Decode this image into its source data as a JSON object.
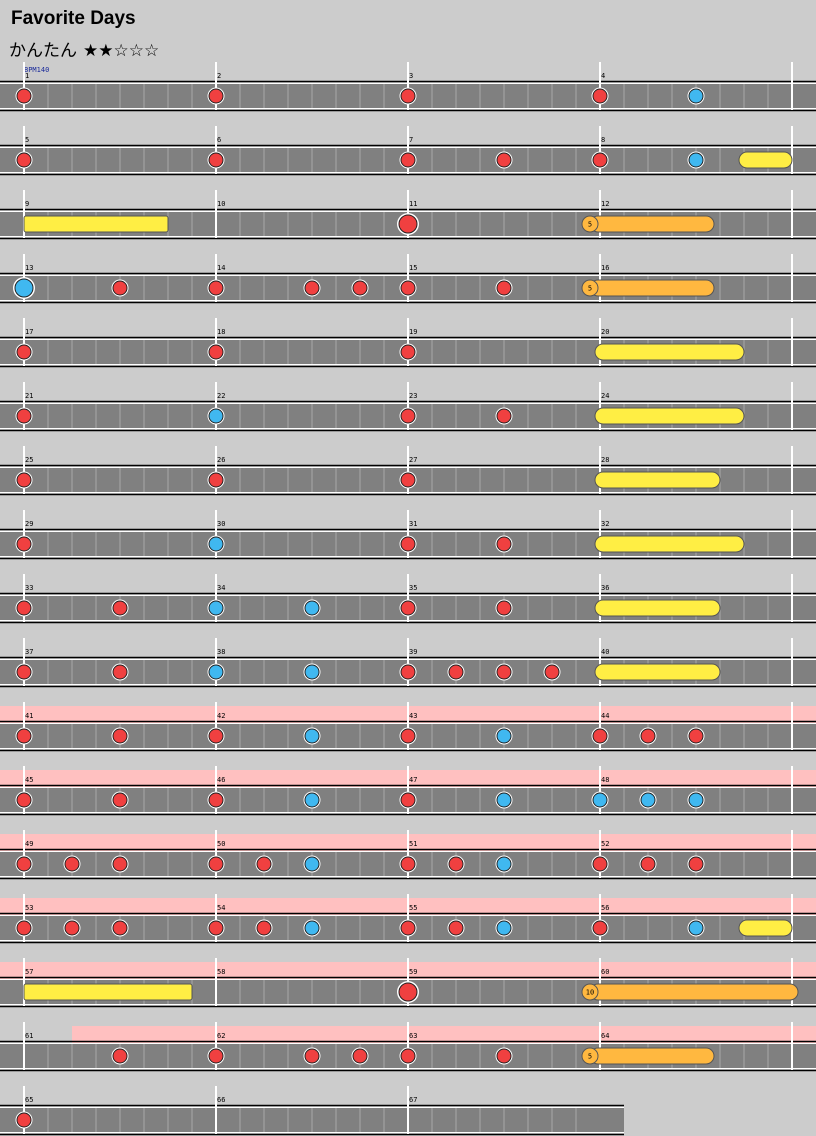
{
  "song": {
    "title": "Favorite Days",
    "difficulty_label": "かんたん",
    "stars": "★★☆☆☆",
    "stars_filled": 2,
    "stars_total": 5,
    "bpm_label": "BPM140"
  },
  "colors": {
    "background": "#cccccc",
    "lane": "#808080",
    "gogo_highlight": "#ffc0c0",
    "don": "#f04040",
    "ka": "#40b8f0",
    "drumroll": "#ffee44",
    "balloon": "#ffb840"
  },
  "chart_data": {
    "type": "rhythm-game-note-chart",
    "measures_per_row": 4,
    "beats_per_measure": 4,
    "total_measures": 67,
    "measure_numbers": [
      1,
      2,
      3,
      4,
      5,
      6,
      7,
      8,
      9,
      10,
      11,
      12,
      13,
      14,
      15,
      16,
      17,
      18,
      19,
      20,
      21,
      22,
      23,
      24,
      25,
      26,
      27,
      28,
      29,
      30,
      31,
      32,
      33,
      34,
      35,
      36,
      37,
      38,
      39,
      40,
      41,
      42,
      43,
      44,
      45,
      46,
      47,
      48,
      49,
      50,
      51,
      52,
      53,
      54,
      55,
      56,
      57,
      58,
      59,
      60,
      61,
      62,
      63,
      64,
      65,
      66,
      67
    ],
    "gogo_sections": [
      {
        "start": 41,
        "end": 61
      },
      {
        "start": 61.25,
        "end": 65
      }
    ],
    "notes": [
      {
        "m": 1,
        "b": 0,
        "t": "don"
      },
      {
        "m": 2,
        "b": 0,
        "t": "don"
      },
      {
        "m": 3,
        "b": 0,
        "t": "don"
      },
      {
        "m": 4,
        "b": 0,
        "t": "don"
      },
      {
        "m": 4,
        "b": 2,
        "t": "ka"
      },
      {
        "m": 5,
        "b": 0,
        "t": "don"
      },
      {
        "m": 6,
        "b": 0,
        "t": "don"
      },
      {
        "m": 7,
        "b": 0,
        "t": "don"
      },
      {
        "m": 7,
        "b": 2,
        "t": "don"
      },
      {
        "m": 8,
        "b": 0,
        "t": "don"
      },
      {
        "m": 8,
        "b": 2,
        "t": "ka"
      },
      {
        "m": 11,
        "b": 0,
        "t": "big-don"
      },
      {
        "m": 13,
        "b": 0,
        "t": "big-ka"
      },
      {
        "m": 13,
        "b": 2,
        "t": "don"
      },
      {
        "m": 14,
        "b": 0,
        "t": "don"
      },
      {
        "m": 14,
        "b": 2,
        "t": "don"
      },
      {
        "m": 14,
        "b": 3,
        "t": "don"
      },
      {
        "m": 15,
        "b": 0,
        "t": "don"
      },
      {
        "m": 15,
        "b": 2,
        "t": "don"
      },
      {
        "m": 17,
        "b": 0,
        "t": "don"
      },
      {
        "m": 18,
        "b": 0,
        "t": "don"
      },
      {
        "m": 19,
        "b": 0,
        "t": "don"
      },
      {
        "m": 21,
        "b": 0,
        "t": "don"
      },
      {
        "m": 22,
        "b": 0,
        "t": "ka"
      },
      {
        "m": 23,
        "b": 0,
        "t": "don"
      },
      {
        "m": 23,
        "b": 2,
        "t": "don"
      },
      {
        "m": 25,
        "b": 0,
        "t": "don"
      },
      {
        "m": 26,
        "b": 0,
        "t": "don"
      },
      {
        "m": 27,
        "b": 0,
        "t": "don"
      },
      {
        "m": 29,
        "b": 0,
        "t": "don"
      },
      {
        "m": 30,
        "b": 0,
        "t": "ka"
      },
      {
        "m": 31,
        "b": 0,
        "t": "don"
      },
      {
        "m": 31,
        "b": 2,
        "t": "don"
      },
      {
        "m": 33,
        "b": 0,
        "t": "don"
      },
      {
        "m": 33,
        "b": 2,
        "t": "don"
      },
      {
        "m": 34,
        "b": 0,
        "t": "ka"
      },
      {
        "m": 34,
        "b": 2,
        "t": "ka"
      },
      {
        "m": 35,
        "b": 0,
        "t": "don"
      },
      {
        "m": 35,
        "b": 2,
        "t": "don"
      },
      {
        "m": 37,
        "b": 0,
        "t": "don"
      },
      {
        "m": 37,
        "b": 2,
        "t": "don"
      },
      {
        "m": 38,
        "b": 0,
        "t": "ka"
      },
      {
        "m": 38,
        "b": 2,
        "t": "ka"
      },
      {
        "m": 39,
        "b": 0,
        "t": "don"
      },
      {
        "m": 39,
        "b": 1,
        "t": "don"
      },
      {
        "m": 39,
        "b": 2,
        "t": "don"
      },
      {
        "m": 39,
        "b": 3,
        "t": "don"
      },
      {
        "m": 41,
        "b": 0,
        "t": "don"
      },
      {
        "m": 41,
        "b": 2,
        "t": "don"
      },
      {
        "m": 42,
        "b": 0,
        "t": "don"
      },
      {
        "m": 42,
        "b": 2,
        "t": "ka"
      },
      {
        "m": 43,
        "b": 0,
        "t": "don"
      },
      {
        "m": 43,
        "b": 2,
        "t": "ka"
      },
      {
        "m": 44,
        "b": 0,
        "t": "don"
      },
      {
        "m": 44,
        "b": 1,
        "t": "don"
      },
      {
        "m": 44,
        "b": 2,
        "t": "don"
      },
      {
        "m": 45,
        "b": 0,
        "t": "don"
      },
      {
        "m": 45,
        "b": 2,
        "t": "don"
      },
      {
        "m": 46,
        "b": 0,
        "t": "don"
      },
      {
        "m": 46,
        "b": 2,
        "t": "ka"
      },
      {
        "m": 47,
        "b": 0,
        "t": "don"
      },
      {
        "m": 47,
        "b": 2,
        "t": "ka"
      },
      {
        "m": 48,
        "b": 0,
        "t": "ka"
      },
      {
        "m": 48,
        "b": 1,
        "t": "ka"
      },
      {
        "m": 48,
        "b": 2,
        "t": "ka"
      },
      {
        "m": 49,
        "b": 0,
        "t": "don"
      },
      {
        "m": 49,
        "b": 1,
        "t": "don"
      },
      {
        "m": 49,
        "b": 2,
        "t": "don"
      },
      {
        "m": 50,
        "b": 0,
        "t": "don"
      },
      {
        "m": 50,
        "b": 1,
        "t": "don"
      },
      {
        "m": 50,
        "b": 2,
        "t": "ka"
      },
      {
        "m": 51,
        "b": 0,
        "t": "don"
      },
      {
        "m": 51,
        "b": 1,
        "t": "don"
      },
      {
        "m": 51,
        "b": 2,
        "t": "ka"
      },
      {
        "m": 52,
        "b": 0,
        "t": "don"
      },
      {
        "m": 52,
        "b": 1,
        "t": "don"
      },
      {
        "m": 52,
        "b": 2,
        "t": "don"
      },
      {
        "m": 53,
        "b": 0,
        "t": "don"
      },
      {
        "m": 53,
        "b": 1,
        "t": "don"
      },
      {
        "m": 53,
        "b": 2,
        "t": "don"
      },
      {
        "m": 54,
        "b": 0,
        "t": "don"
      },
      {
        "m": 54,
        "b": 1,
        "t": "don"
      },
      {
        "m": 54,
        "b": 2,
        "t": "ka"
      },
      {
        "m": 55,
        "b": 0,
        "t": "don"
      },
      {
        "m": 55,
        "b": 1,
        "t": "don"
      },
      {
        "m": 55,
        "b": 2,
        "t": "ka"
      },
      {
        "m": 56,
        "b": 0,
        "t": "don"
      },
      {
        "m": 56,
        "b": 2,
        "t": "ka"
      },
      {
        "m": 59,
        "b": 0,
        "t": "big-don"
      },
      {
        "m": 62,
        "b": 0,
        "t": "don"
      },
      {
        "m": 61,
        "b": 2,
        "t": "don"
      },
      {
        "m": 62,
        "b": 2,
        "t": "don"
      },
      {
        "m": 62,
        "b": 3,
        "t": "don"
      },
      {
        "m": 63,
        "b": 0,
        "t": "don"
      },
      {
        "m": 63,
        "b": 2,
        "t": "don"
      },
      {
        "m": 65,
        "b": 0,
        "t": "don"
      }
    ],
    "drumrolls": [
      {
        "start": 8.75,
        "end": 9.75
      },
      {
        "start": 20,
        "end": 20.75
      },
      {
        "start": 24,
        "end": 24.75
      },
      {
        "start": 28,
        "end": 28.625
      },
      {
        "start": 32,
        "end": 32.75
      },
      {
        "start": 36,
        "end": 36.625
      },
      {
        "start": 40,
        "end": 40.625
      },
      {
        "start": 56.75,
        "end": 57.875
      }
    ],
    "balloons": [
      {
        "start": 12,
        "end": 12.5625,
        "hits": "5"
      },
      {
        "start": 16,
        "end": 16.5625,
        "hits": "5"
      },
      {
        "start": 60,
        "end": 61,
        "hits": "10"
      },
      {
        "start": 64,
        "end": 64.5625,
        "hits": "5"
      }
    ]
  }
}
